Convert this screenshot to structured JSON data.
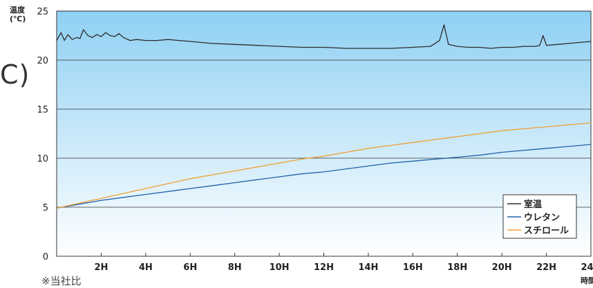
{
  "cut_text": "C)",
  "footnote": "※当社比",
  "chart_data": {
    "type": "line",
    "ylabel": "温度",
    "yunit": "(℃)",
    "xlabel": "時間",
    "ylim": [
      0,
      25
    ],
    "yticks": [
      0,
      5,
      10,
      15,
      20,
      25
    ],
    "xlim": [
      0,
      24
    ],
    "xticks": [
      2,
      4,
      6,
      8,
      10,
      12,
      14,
      16,
      18,
      20,
      22,
      24
    ],
    "xtick_labels": [
      "2H",
      "4H",
      "6H",
      "8H",
      "10H",
      "12H",
      "14H",
      "16H",
      "18H",
      "20H",
      "22H",
      "24H"
    ],
    "grid": true,
    "legend_position": "bottom-right",
    "series": [
      {
        "name": "室温",
        "color": "#2b2b2b",
        "x": [
          0,
          0.2,
          0.35,
          0.5,
          0.7,
          0.9,
          1.05,
          1.2,
          1.4,
          1.6,
          1.8,
          2.0,
          2.2,
          2.4,
          2.6,
          2.8,
          3.0,
          3.3,
          3.6,
          4.0,
          4.5,
          5.0,
          5.5,
          6.0,
          7.0,
          8.0,
          9.0,
          10.0,
          11.0,
          12.0,
          13.0,
          14.0,
          15.0,
          16.0,
          16.8,
          17.2,
          17.4,
          17.6,
          18.0,
          18.5,
          19.0,
          19.5,
          20.0,
          20.5,
          21.0,
          21.5,
          21.7,
          21.85,
          22.0,
          22.5,
          23.0,
          23.5,
          24.0
        ],
        "y": [
          22.0,
          22.8,
          22.0,
          22.6,
          22.1,
          22.3,
          22.2,
          23.1,
          22.5,
          22.3,
          22.6,
          22.4,
          22.8,
          22.5,
          22.4,
          22.7,
          22.3,
          22.0,
          22.1,
          22.0,
          22.0,
          22.1,
          22.0,
          21.9,
          21.7,
          21.6,
          21.5,
          21.4,
          21.3,
          21.3,
          21.2,
          21.2,
          21.2,
          21.3,
          21.4,
          22.0,
          23.6,
          21.6,
          21.4,
          21.3,
          21.3,
          21.2,
          21.3,
          21.3,
          21.4,
          21.4,
          21.5,
          22.5,
          21.5,
          21.6,
          21.7,
          21.8,
          21.9
        ]
      },
      {
        "name": "ウレタン",
        "color": "#1f5fa8",
        "x": [
          0,
          1,
          2,
          3,
          4,
          5,
          6,
          7,
          8,
          9,
          10,
          11,
          12,
          13,
          14,
          15,
          16,
          17,
          18,
          19,
          20,
          21,
          22,
          23,
          24
        ],
        "y": [
          4.9,
          5.3,
          5.7,
          6.0,
          6.3,
          6.6,
          6.9,
          7.2,
          7.5,
          7.8,
          8.1,
          8.4,
          8.6,
          8.9,
          9.2,
          9.5,
          9.7,
          9.9,
          10.1,
          10.3,
          10.6,
          10.8,
          11.0,
          11.2,
          11.4
        ]
      },
      {
        "name": "スチロール",
        "color": "#f0a030",
        "x": [
          0,
          1,
          2,
          3,
          4,
          5,
          6,
          7,
          8,
          9,
          10,
          11,
          12,
          13,
          14,
          15,
          16,
          17,
          18,
          19,
          20,
          21,
          22,
          23,
          24
        ],
        "y": [
          4.9,
          5.4,
          5.9,
          6.4,
          6.9,
          7.4,
          7.9,
          8.3,
          8.7,
          9.1,
          9.5,
          9.9,
          10.2,
          10.6,
          11.0,
          11.3,
          11.6,
          11.9,
          12.2,
          12.5,
          12.8,
          13.0,
          13.2,
          13.4,
          13.6
        ]
      }
    ]
  }
}
